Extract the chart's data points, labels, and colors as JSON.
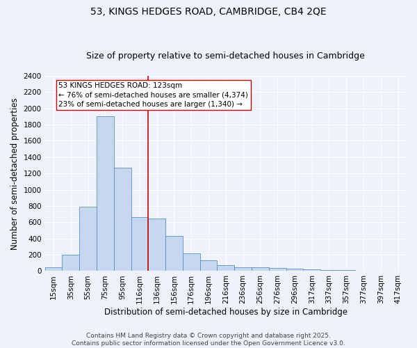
{
  "title": "53, KINGS HEDGES ROAD, CAMBRIDGE, CB4 2QE",
  "subtitle": "Size of property relative to semi-detached houses in Cambridge",
  "xlabel": "Distribution of semi-detached houses by size in Cambridge",
  "ylabel": "Number of semi-detached properties",
  "categories": [
    "15sqm",
    "35sqm",
    "55sqm",
    "75sqm",
    "95sqm",
    "116sqm",
    "136sqm",
    "156sqm",
    "176sqm",
    "196sqm",
    "216sqm",
    "236sqm",
    "256sqm",
    "276sqm",
    "296sqm",
    "317sqm",
    "337sqm",
    "357sqm",
    "377sqm",
    "397sqm",
    "417sqm"
  ],
  "values": [
    50,
    200,
    790,
    1900,
    1270,
    660,
    650,
    430,
    215,
    130,
    70,
    50,
    50,
    40,
    30,
    25,
    15,
    10,
    5,
    3,
    2
  ],
  "bar_color": "#c5d8f0",
  "bar_edge_color": "#5b8ec4",
  "vline_x": 5.5,
  "property_label": "53 KINGS HEDGES ROAD: 123sqm",
  "pct_smaller": 76,
  "count_smaller": 4374,
  "pct_larger": 23,
  "count_larger": 1340,
  "annotation_box_color": "#ffffff",
  "annotation_box_edge": "#cc0000",
  "vline_color": "#cc0000",
  "ylim": [
    0,
    2400
  ],
  "yticks": [
    0,
    200,
    400,
    600,
    800,
    1000,
    1200,
    1400,
    1600,
    1800,
    2000,
    2200,
    2400
  ],
  "background_color": "#eef2fb",
  "footer": "Contains HM Land Registry data © Crown copyright and database right 2025.\nContains public sector information licensed under the Open Government Licence v3.0.",
  "title_fontsize": 10,
  "subtitle_fontsize": 9,
  "axis_label_fontsize": 8.5,
  "tick_fontsize": 7.5,
  "annotation_fontsize": 7.5,
  "footer_fontsize": 6.5
}
